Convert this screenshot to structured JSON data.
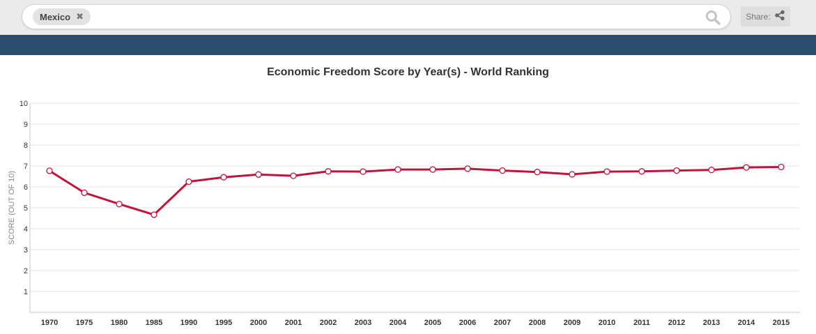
{
  "search": {
    "chip_label": "Mexico",
    "chip_remove": "✖"
  },
  "share": {
    "label": "Share:"
  },
  "colors": {
    "line": "#c0143c",
    "banner": "#2b4e6e",
    "grid": "#e4e4e4"
  },
  "chart_data": {
    "type": "line",
    "title": "Economic Freedom Score by Year(s) - World Ranking",
    "xlabel": "",
    "ylabel": "SCORE (OUT OF 10)",
    "ylim": [
      0,
      10
    ],
    "yticks": [
      "10",
      "9",
      "8",
      "7",
      "6",
      "5",
      "4",
      "3",
      "2",
      "1"
    ],
    "grid": true,
    "categories": [
      "1970",
      "1975",
      "1980",
      "1985",
      "1990",
      "1995",
      "2000",
      "2001",
      "2002",
      "2003",
      "2004",
      "2005",
      "2006",
      "2007",
      "2008",
      "2009",
      "2010",
      "2011",
      "2012",
      "2013",
      "2014",
      "2015"
    ],
    "series": [
      {
        "values": [
          6.77,
          5.72,
          5.18,
          4.67,
          6.25,
          6.46,
          6.59,
          6.53,
          6.74,
          6.73,
          6.83,
          6.83,
          6.87,
          6.78,
          6.71,
          6.6,
          6.73,
          6.74,
          6.78,
          6.81,
          6.93,
          6.95
        ]
      }
    ]
  }
}
